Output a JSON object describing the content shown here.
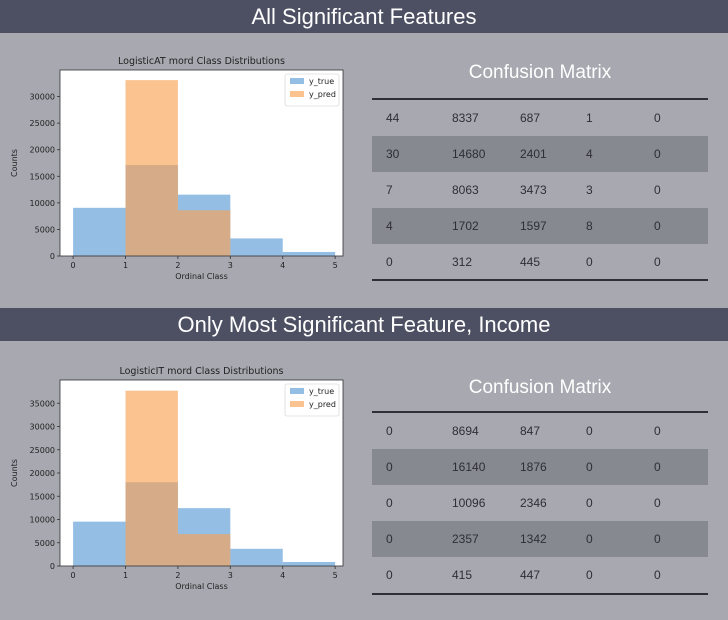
{
  "sections": [
    {
      "banner": "All Significant Features",
      "matrix_title": "Confusion Matrix",
      "matrix": [
        [
          "44",
          "8337",
          "687",
          "1",
          "0"
        ],
        [
          "30",
          "14680",
          "2401",
          "4",
          "0"
        ],
        [
          "7",
          "8063",
          "3473",
          "3",
          "0"
        ],
        [
          "4",
          "1702",
          "1597",
          "8",
          "0"
        ],
        [
          "0",
          "312",
          "445",
          "0",
          "0"
        ]
      ]
    },
    {
      "banner": "Only Most Significant Feature, Income",
      "matrix_title": "Confusion Matrix",
      "matrix": [
        [
          "0",
          "8694",
          "847",
          "0",
          "0"
        ],
        [
          "0",
          "16140",
          "1876",
          "0",
          "0"
        ],
        [
          "0",
          "10096",
          "2346",
          "0",
          "0"
        ],
        [
          "0",
          "2357",
          "1342",
          "0",
          "0"
        ],
        [
          "0",
          "415",
          "447",
          "0",
          "0"
        ]
      ]
    }
  ],
  "colors": {
    "y_true": "#5b9bd5",
    "y_pred": "#f7a354",
    "banner": "#4d5063",
    "background": "#a7a8b0"
  },
  "chart_data": [
    {
      "type": "histogram",
      "title": "LogisticAT mord Class Distributions",
      "xlabel": "Ordinal Class",
      "ylabel": "Counts",
      "bin_edges": [
        0,
        1,
        2,
        3,
        4,
        5
      ],
      "xlim": [
        -0.25,
        5.15
      ],
      "ylim": [
        0,
        35000
      ],
      "xticks": [
        0,
        1,
        2,
        3,
        4,
        5
      ],
      "yticks": [
        0,
        5000,
        10000,
        15000,
        20000,
        25000,
        30000
      ],
      "legend_position": "top-right",
      "grid": false,
      "series": [
        {
          "name": "y_true",
          "values": [
            9069,
            17115,
            11546,
            3311,
            757
          ]
        },
        {
          "name": "y_pred",
          "values": [
            85,
            33094,
            8603,
            16,
            0
          ]
        }
      ]
    },
    {
      "type": "histogram",
      "title": "LogisticIT mord Class Distributions",
      "xlabel": "Ordinal Class",
      "ylabel": "Counts",
      "bin_edges": [
        0,
        1,
        2,
        3,
        4,
        5
      ],
      "xlim": [
        -0.25,
        5.15
      ],
      "ylim": [
        0,
        40000
      ],
      "xticks": [
        0,
        1,
        2,
        3,
        4,
        5
      ],
      "yticks": [
        0,
        5000,
        10000,
        15000,
        20000,
        25000,
        30000,
        35000
      ],
      "legend_position": "top-right",
      "grid": false,
      "series": [
        {
          "name": "y_true",
          "values": [
            9541,
            18016,
            12442,
            3699,
            862
          ]
        },
        {
          "name": "y_pred",
          "values": [
            0,
            37702,
            6858,
            0,
            0
          ]
        }
      ]
    }
  ]
}
